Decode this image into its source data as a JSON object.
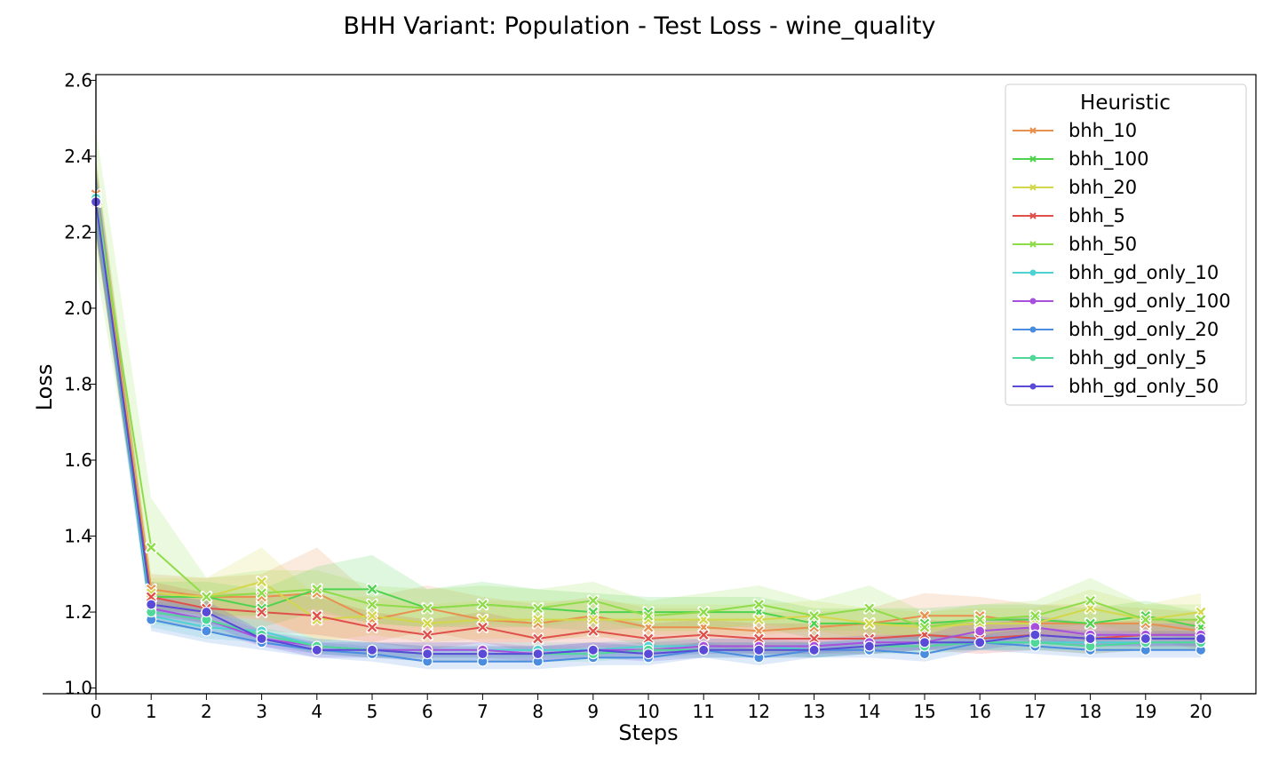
{
  "chart_data": {
    "type": "line",
    "title": "BHH Variant: Population - Test Loss - wine_quality",
    "xlabel": "Steps",
    "ylabel": "Loss",
    "xlim": [
      0,
      21
    ],
    "ylim": [
      0.985,
      2.615
    ],
    "x": [
      0,
      1,
      2,
      3,
      4,
      5,
      6,
      7,
      8,
      9,
      10,
      11,
      12,
      13,
      14,
      15,
      16,
      17,
      18,
      19,
      20
    ],
    "x_ticks": [
      "0",
      "1",
      "2",
      "3",
      "4",
      "5",
      "6",
      "7",
      "8",
      "9",
      "10",
      "11",
      "12",
      "13",
      "14",
      "15",
      "16",
      "17",
      "18",
      "19",
      "20"
    ],
    "y_ticks": [
      1.0,
      1.2,
      1.4,
      1.6,
      1.8,
      2.0,
      2.2,
      2.4,
      2.6
    ],
    "y_tick_labels": [
      "1.0",
      "1.2",
      "1.4",
      "1.6",
      "1.8",
      "2.0",
      "2.2",
      "2.4",
      "2.6"
    ],
    "grid": false,
    "legend": {
      "title": "Heuristic",
      "position": "top-right"
    },
    "series": [
      {
        "name": "bhh_10",
        "color": "#e8904f",
        "marker": "x",
        "values": [
          2.3,
          1.26,
          1.24,
          1.24,
          1.25,
          1.18,
          1.21,
          1.18,
          1.17,
          1.19,
          1.16,
          1.16,
          1.15,
          1.16,
          1.17,
          1.19,
          1.19,
          1.17,
          1.17,
          1.17,
          1.15
        ],
        "band": [
          0.1,
          0.04,
          0.05,
          0.06,
          0.12,
          0.06,
          0.06,
          0.06,
          0.05,
          0.05,
          0.05,
          0.05,
          0.05,
          0.04,
          0.04,
          0.06,
          0.05,
          0.05,
          0.05,
          0.04,
          0.05
        ]
      },
      {
        "name": "bhh_100",
        "color": "#4fd34f",
        "marker": "x",
        "values": [
          2.29,
          1.24,
          1.24,
          1.21,
          1.26,
          1.26,
          1.21,
          1.22,
          1.21,
          1.2,
          1.2,
          1.2,
          1.2,
          1.17,
          1.17,
          1.17,
          1.18,
          1.18,
          1.17,
          1.19,
          1.16
        ],
        "band": [
          0.1,
          0.04,
          0.04,
          0.05,
          0.06,
          0.09,
          0.05,
          0.06,
          0.05,
          0.05,
          0.04,
          0.04,
          0.04,
          0.04,
          0.04,
          0.04,
          0.04,
          0.04,
          0.04,
          0.04,
          0.04
        ]
      },
      {
        "name": "bhh_20",
        "color": "#d3d84a",
        "marker": "x",
        "values": [
          2.29,
          1.25,
          1.24,
          1.28,
          1.18,
          1.19,
          1.17,
          1.18,
          1.18,
          1.18,
          1.18,
          1.18,
          1.18,
          1.19,
          1.17,
          1.16,
          1.17,
          1.17,
          1.21,
          1.18,
          1.2
        ],
        "band": [
          0.1,
          0.04,
          0.05,
          0.09,
          0.06,
          0.05,
          0.05,
          0.05,
          0.05,
          0.05,
          0.04,
          0.04,
          0.04,
          0.04,
          0.04,
          0.04,
          0.04,
          0.04,
          0.05,
          0.04,
          0.05
        ]
      },
      {
        "name": "bhh_5",
        "color": "#e0504a",
        "marker": "x",
        "values": [
          2.28,
          1.24,
          1.21,
          1.2,
          1.19,
          1.16,
          1.14,
          1.16,
          1.13,
          1.15,
          1.13,
          1.14,
          1.13,
          1.13,
          1.13,
          1.14,
          1.13,
          1.14,
          1.13,
          1.14,
          1.14
        ],
        "band": [
          0.1,
          0.04,
          0.04,
          0.05,
          0.05,
          0.04,
          0.04,
          0.04,
          0.04,
          0.04,
          0.04,
          0.04,
          0.04,
          0.04,
          0.04,
          0.04,
          0.04,
          0.04,
          0.04,
          0.04,
          0.04
        ]
      },
      {
        "name": "bhh_50",
        "color": "#8fdc4a",
        "marker": "x",
        "values": [
          2.29,
          1.37,
          1.24,
          1.25,
          1.26,
          1.22,
          1.21,
          1.22,
          1.21,
          1.23,
          1.19,
          1.2,
          1.22,
          1.19,
          1.21,
          1.16,
          1.18,
          1.19,
          1.23,
          1.18,
          1.18
        ],
        "band": [
          0.18,
          0.13,
          0.05,
          0.06,
          0.05,
          0.05,
          0.05,
          0.05,
          0.05,
          0.05,
          0.04,
          0.05,
          0.05,
          0.04,
          0.06,
          0.04,
          0.04,
          0.04,
          0.06,
          0.04,
          0.04
        ]
      },
      {
        "name": "bhh_gd_only_10",
        "color": "#4fd2d2",
        "marker": "o",
        "values": [
          2.29,
          1.19,
          1.16,
          1.15,
          1.11,
          1.1,
          1.1,
          1.1,
          1.1,
          1.1,
          1.11,
          1.11,
          1.11,
          1.1,
          1.11,
          1.12,
          1.12,
          1.12,
          1.12,
          1.12,
          1.12
        ],
        "band": [
          0.08,
          0.03,
          0.03,
          0.03,
          0.02,
          0.02,
          0.02,
          0.02,
          0.02,
          0.02,
          0.02,
          0.02,
          0.02,
          0.02,
          0.02,
          0.02,
          0.02,
          0.02,
          0.02,
          0.02,
          0.02
        ]
      },
      {
        "name": "bhh_gd_only_100",
        "color": "#a84fdc",
        "marker": "o",
        "values": [
          2.28,
          1.21,
          1.18,
          1.13,
          1.11,
          1.1,
          1.1,
          1.1,
          1.09,
          1.1,
          1.1,
          1.11,
          1.11,
          1.11,
          1.12,
          1.12,
          1.15,
          1.16,
          1.14,
          1.14,
          1.14
        ],
        "band": [
          0.08,
          0.03,
          0.03,
          0.02,
          0.02,
          0.02,
          0.02,
          0.02,
          0.02,
          0.02,
          0.02,
          0.02,
          0.02,
          0.02,
          0.02,
          0.02,
          0.03,
          0.03,
          0.03,
          0.03,
          0.03
        ]
      },
      {
        "name": "bhh_gd_only_20",
        "color": "#4a8ce0",
        "marker": "o",
        "values": [
          2.28,
          1.18,
          1.15,
          1.12,
          1.1,
          1.09,
          1.07,
          1.07,
          1.07,
          1.08,
          1.08,
          1.1,
          1.08,
          1.1,
          1.1,
          1.09,
          1.12,
          1.11,
          1.1,
          1.1,
          1.1
        ],
        "band": [
          0.08,
          0.03,
          0.03,
          0.02,
          0.02,
          0.02,
          0.02,
          0.02,
          0.02,
          0.02,
          0.02,
          0.02,
          0.02,
          0.02,
          0.02,
          0.02,
          0.02,
          0.02,
          0.02,
          0.02,
          0.02
        ]
      },
      {
        "name": "bhh_gd_only_5",
        "color": "#4fd89a",
        "marker": "o",
        "values": [
          2.28,
          1.2,
          1.18,
          1.14,
          1.11,
          1.1,
          1.09,
          1.09,
          1.09,
          1.09,
          1.1,
          1.1,
          1.1,
          1.1,
          1.11,
          1.11,
          1.12,
          1.12,
          1.11,
          1.12,
          1.12
        ],
        "band": [
          0.08,
          0.03,
          0.03,
          0.02,
          0.02,
          0.02,
          0.02,
          0.02,
          0.02,
          0.02,
          0.02,
          0.02,
          0.02,
          0.02,
          0.02,
          0.02,
          0.02,
          0.02,
          0.02,
          0.02,
          0.02
        ]
      },
      {
        "name": "bhh_gd_only_50",
        "color": "#5a4ad8",
        "marker": "o",
        "values": [
          2.28,
          1.22,
          1.2,
          1.13,
          1.1,
          1.1,
          1.09,
          1.09,
          1.09,
          1.1,
          1.09,
          1.1,
          1.1,
          1.1,
          1.11,
          1.12,
          1.12,
          1.14,
          1.13,
          1.13,
          1.13
        ],
        "band": [
          0.08,
          0.03,
          0.03,
          0.02,
          0.02,
          0.02,
          0.02,
          0.02,
          0.02,
          0.02,
          0.02,
          0.02,
          0.02,
          0.02,
          0.02,
          0.02,
          0.02,
          0.02,
          0.02,
          0.02,
          0.02
        ]
      }
    ]
  }
}
